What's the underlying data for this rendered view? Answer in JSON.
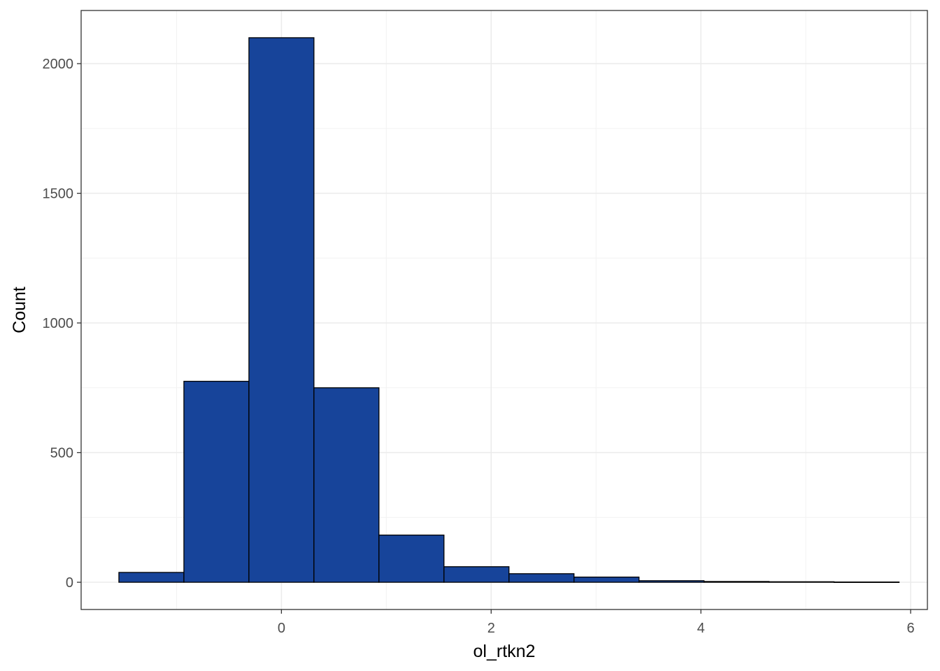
{
  "chart_data": {
    "type": "histogram",
    "title": "",
    "xlabel": "ol_rtkn2",
    "ylabel": "Count",
    "xlim": [
      -1.91,
      6.16
    ],
    "ylim": [
      -105,
      2205
    ],
    "x_ticks": [
      0,
      2,
      4,
      6
    ],
    "y_ticks": [
      0,
      500,
      1000,
      1500,
      2000
    ],
    "grid": true,
    "bar_fill": "#17449a",
    "bar_stroke": "#000000",
    "bins": [
      {
        "x0": -1.55,
        "x1": -0.93,
        "count": 38
      },
      {
        "x0": -0.93,
        "x1": -0.31,
        "count": 775
      },
      {
        "x0": -0.31,
        "x1": 0.31,
        "count": 2100
      },
      {
        "x0": 0.31,
        "x1": 0.93,
        "count": 750
      },
      {
        "x0": 0.93,
        "x1": 1.55,
        "count": 182
      },
      {
        "x0": 1.55,
        "x1": 2.17,
        "count": 60
      },
      {
        "x0": 2.17,
        "x1": 2.79,
        "count": 33
      },
      {
        "x0": 2.79,
        "x1": 3.41,
        "count": 20
      },
      {
        "x0": 3.41,
        "x1": 4.03,
        "count": 6
      },
      {
        "x0": 4.03,
        "x1": 4.65,
        "count": 3
      },
      {
        "x0": 4.65,
        "x1": 5.27,
        "count": 2
      },
      {
        "x0": 5.27,
        "x1": 5.89,
        "count": 1
      }
    ]
  }
}
